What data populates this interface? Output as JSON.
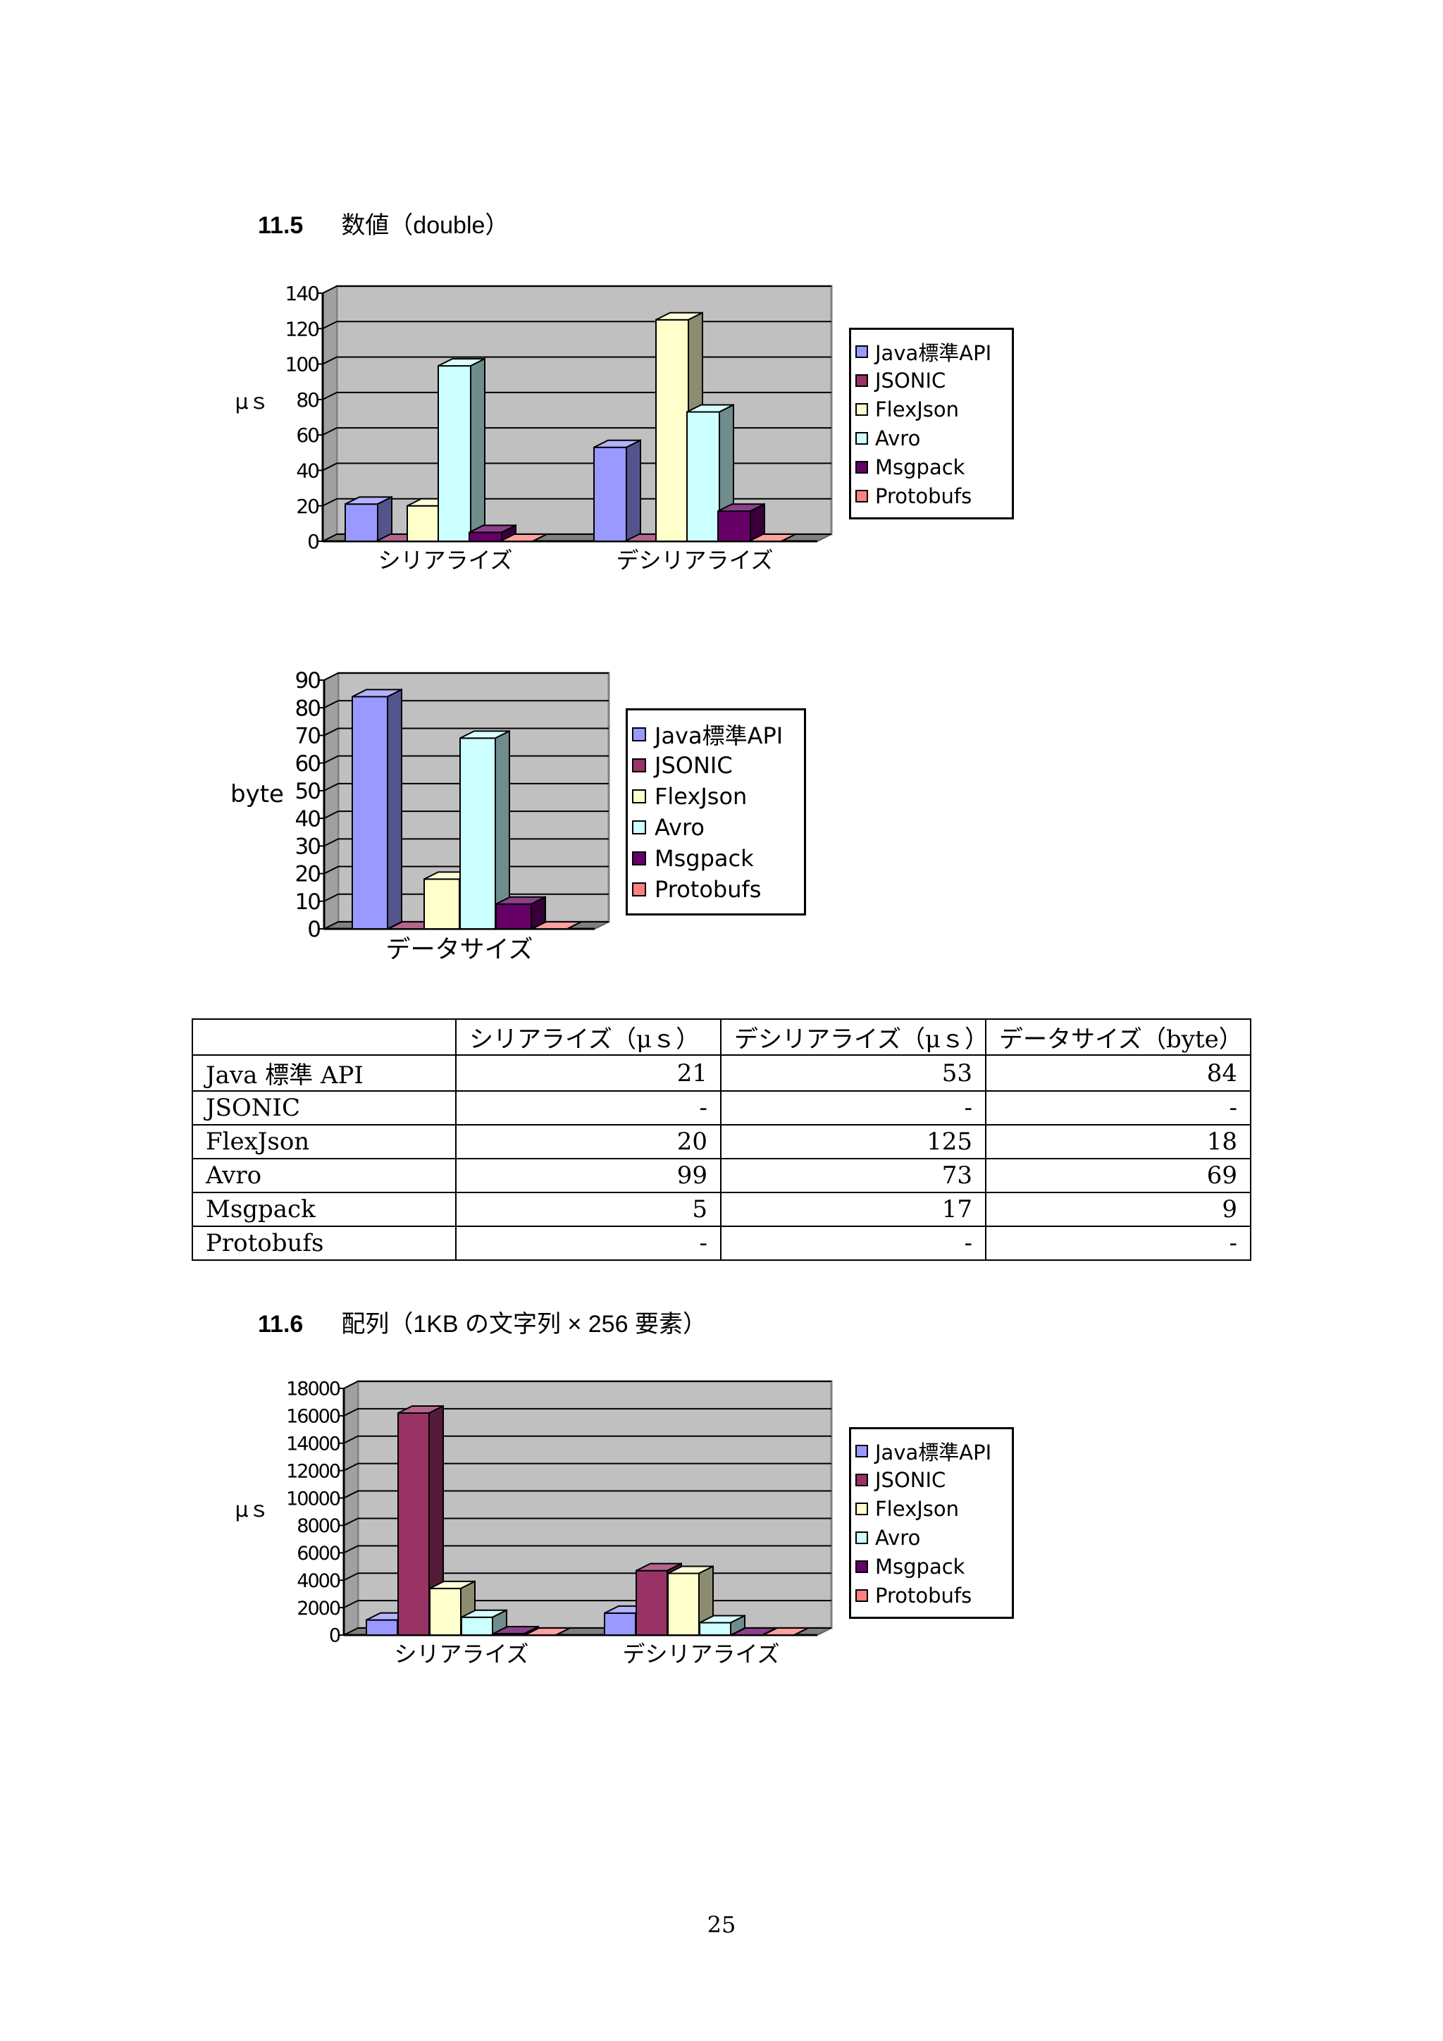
{
  "section_11_5": {
    "number": "11.5",
    "title": "数値（double）"
  },
  "section_11_6": {
    "number": "11.6",
    "title": "配列（1KB の文字列 × 256 要素）"
  },
  "legend_entries": [
    "Java標準API",
    "JSONIC",
    "FlexJson",
    "Avro",
    "Msgpack",
    "Protobufs"
  ],
  "colors": {
    "Java標準API": "#9999ff",
    "JSONIC": "#993366",
    "FlexJson": "#ffffcc",
    "Avro": "#ccffff",
    "Msgpack": "#660066",
    "Protobufs": "#ff8080",
    "plot_background": "#c0c0c0",
    "floor": "#808080"
  },
  "chart_data": [
    {
      "type": "bar",
      "ylabel": "μｓ",
      "ylim": [
        0,
        140
      ],
      "yticks": [
        0,
        20,
        40,
        60,
        80,
        100,
        120,
        140
      ],
      "categories": [
        "シリアライズ",
        "デシリアライズ"
      ],
      "series": [
        {
          "name": "Java標準API",
          "values": [
            21,
            53
          ]
        },
        {
          "name": "JSONIC",
          "values": [
            0,
            0
          ]
        },
        {
          "name": "FlexJson",
          "values": [
            20,
            125
          ]
        },
        {
          "name": "Avro",
          "values": [
            99,
            73
          ]
        },
        {
          "name": "Msgpack",
          "values": [
            5,
            17
          ]
        },
        {
          "name": "Protobufs",
          "values": [
            0,
            0
          ]
        }
      ],
      "legend": "right",
      "grid": true
    },
    {
      "type": "bar",
      "ylabel": "byte",
      "ylim": [
        0,
        90
      ],
      "yticks": [
        0,
        10,
        20,
        30,
        40,
        50,
        60,
        70,
        80,
        90
      ],
      "categories": [
        "データサイズ"
      ],
      "series": [
        {
          "name": "Java標準API",
          "values": [
            84
          ]
        },
        {
          "name": "JSONIC",
          "values": [
            0
          ]
        },
        {
          "name": "FlexJson",
          "values": [
            18
          ]
        },
        {
          "name": "Avro",
          "values": [
            69
          ]
        },
        {
          "name": "Msgpack",
          "values": [
            9
          ]
        },
        {
          "name": "Protobufs",
          "values": [
            0
          ]
        }
      ],
      "legend": "right",
      "grid": true
    },
    {
      "type": "bar",
      "ylabel": "μｓ",
      "ylim": [
        0,
        18000
      ],
      "yticks": [
        0,
        2000,
        4000,
        6000,
        8000,
        10000,
        12000,
        14000,
        16000,
        18000
      ],
      "categories": [
        "シリアライズ",
        "デシリアライズ"
      ],
      "series": [
        {
          "name": "Java標準API",
          "values": [
            1100,
            1600
          ]
        },
        {
          "name": "JSONIC",
          "values": [
            16200,
            4700
          ]
        },
        {
          "name": "FlexJson",
          "values": [
            3400,
            4500
          ]
        },
        {
          "name": "Avro",
          "values": [
            1300,
            900
          ]
        },
        {
          "name": "Msgpack",
          "values": [
            100,
            0
          ]
        },
        {
          "name": "Protobufs",
          "values": [
            0,
            0
          ]
        }
      ],
      "legend": "right",
      "grid": true
    }
  ],
  "table": {
    "headers": [
      "",
      "シリアライズ（μｓ）",
      "デシリアライズ（μｓ）",
      "データサイズ（byte）"
    ],
    "rows": [
      [
        "Java 標準 API",
        "21",
        "53",
        "84"
      ],
      [
        "JSONIC",
        "-",
        "-",
        "-"
      ],
      [
        "FlexJson",
        "20",
        "125",
        "18"
      ],
      [
        "Avro",
        "99",
        "73",
        "69"
      ],
      [
        "Msgpack",
        "5",
        "17",
        "9"
      ],
      [
        "Protobufs",
        "-",
        "-",
        "-"
      ]
    ]
  },
  "page_number": "25"
}
